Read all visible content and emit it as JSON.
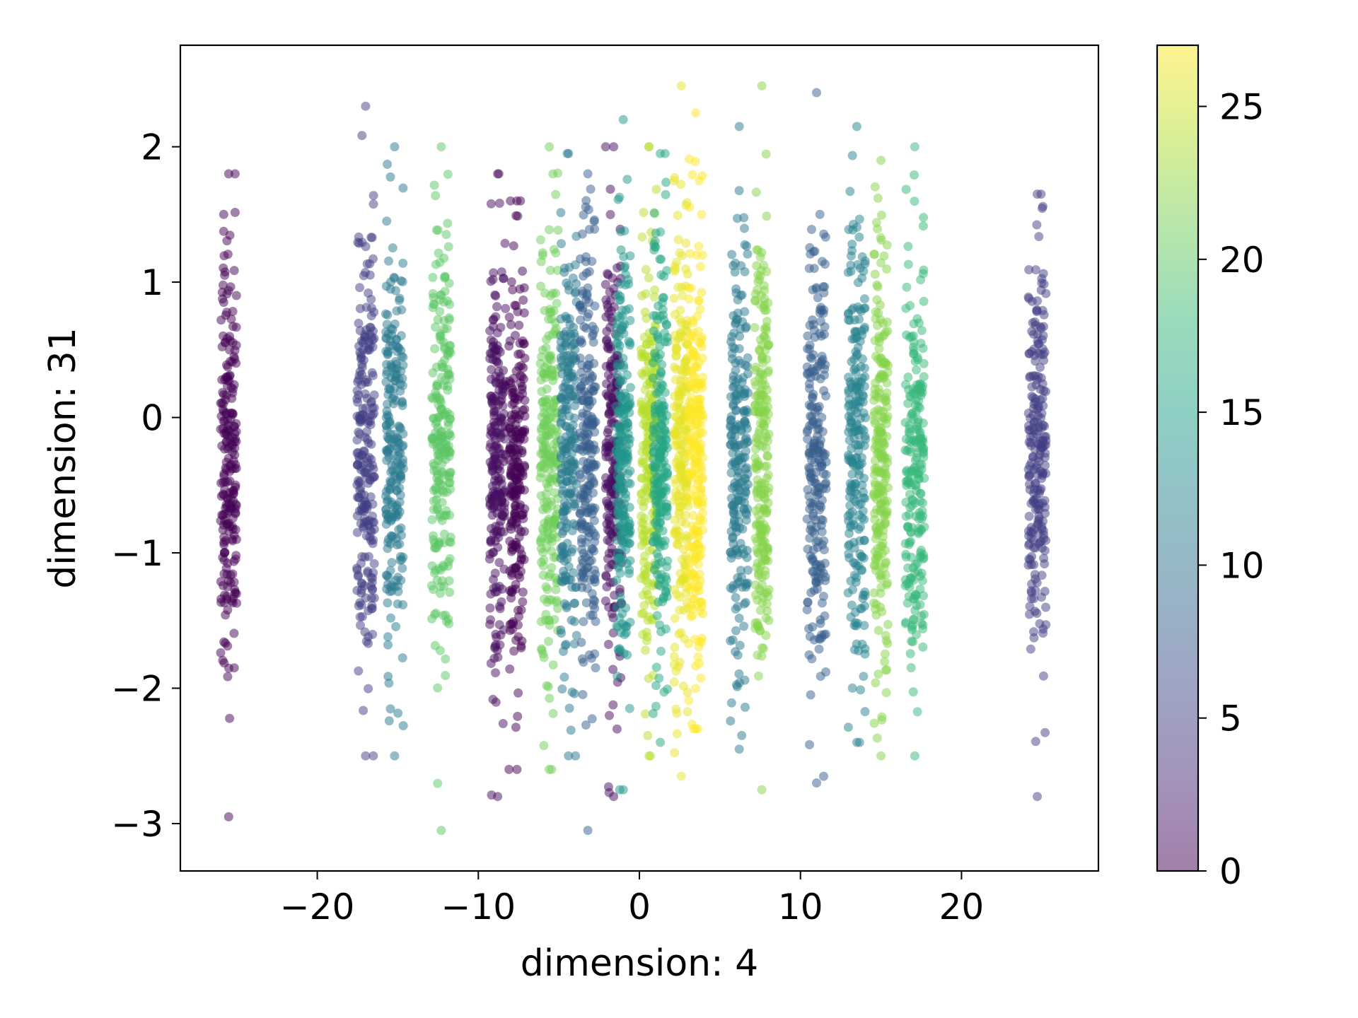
{
  "chart_data": {
    "type": "scatter",
    "title": "",
    "xlabel": "dimension: 4",
    "ylabel": "dimension: 31",
    "xlim": [
      -28.5,
      28.5
    ],
    "ylim": [
      -3.35,
      2.75
    ],
    "xticks": [
      -20,
      -10,
      0,
      10,
      20
    ],
    "yticks": [
      -3,
      -2,
      -1,
      0,
      1,
      2
    ],
    "xtick_labels": [
      "−20",
      "−10",
      "0",
      "10",
      "20"
    ],
    "ytick_labels": [
      "−3",
      "−2",
      "−1",
      "0",
      "1",
      "2"
    ],
    "grid": false,
    "legend": "none",
    "point_alpha": 0.5,
    "colorbar": {
      "colormap": "viridis",
      "range": [
        0,
        27
      ],
      "ticks": [
        0,
        5,
        10,
        15,
        20,
        25
      ],
      "tick_labels": [
        "0",
        "5",
        "10",
        "15",
        "20",
        "25"
      ],
      "alpha": 0.5
    },
    "colors": {
      "viridis_stops": [
        "#440154",
        "#482878",
        "#3e4989",
        "#31688e",
        "#26828e",
        "#1f9e89",
        "#35b779",
        "#6ece58",
        "#b5de2b",
        "#fde725"
      ]
    },
    "clusters": [
      {
        "x": -25.5,
        "spread_x": 0.5,
        "y_sd": 0.75,
        "y_min": -2.95,
        "y_max": 1.8,
        "value": 0
      },
      {
        "x": -17.0,
        "spread_x": 0.55,
        "y_sd": 0.8,
        "y_min": -2.5,
        "y_max": 2.3,
        "value": 5
      },
      {
        "x": -15.2,
        "spread_x": 0.55,
        "y_sd": 0.8,
        "y_min": -2.5,
        "y_max": 2.0,
        "value": 11
      },
      {
        "x": -12.3,
        "spread_x": 0.6,
        "y_sd": 0.8,
        "y_min": -3.05,
        "y_max": 2.0,
        "value": 20
      },
      {
        "x": -8.8,
        "spread_x": 0.5,
        "y_sd": 0.75,
        "y_min": -2.8,
        "y_max": 1.8,
        "value": 1
      },
      {
        "x": -7.6,
        "spread_x": 0.5,
        "y_sd": 0.75,
        "y_min": -2.6,
        "y_max": 1.6,
        "value": 0
      },
      {
        "x": -5.6,
        "spread_x": 0.55,
        "y_sd": 0.8,
        "y_min": -2.6,
        "y_max": 2.0,
        "value": 21
      },
      {
        "x": -4.4,
        "spread_x": 0.5,
        "y_sd": 0.8,
        "y_min": -2.5,
        "y_max": 1.95,
        "value": 11
      },
      {
        "x": -3.2,
        "spread_x": 0.5,
        "y_sd": 0.8,
        "y_min": -3.05,
        "y_max": 1.8,
        "value": 8
      },
      {
        "x": -1.6,
        "spread_x": 0.5,
        "y_sd": 0.8,
        "y_min": -2.8,
        "y_max": 2.0,
        "value": 1
      },
      {
        "x": -1.0,
        "spread_x": 0.45,
        "y_sd": 0.8,
        "y_min": -2.75,
        "y_max": 2.2,
        "value": 14
      },
      {
        "x": 0.6,
        "spread_x": 0.5,
        "y_sd": 0.8,
        "y_min": -2.5,
        "y_max": 2.0,
        "value": 24
      },
      {
        "x": 1.3,
        "spread_x": 0.45,
        "y_sd": 0.8,
        "y_min": -2.4,
        "y_max": 1.95,
        "value": 16
      },
      {
        "x": 2.6,
        "spread_x": 0.45,
        "y_sd": 0.8,
        "y_min": -2.65,
        "y_max": 2.45,
        "value": 26
      },
      {
        "x": 3.5,
        "spread_x": 0.45,
        "y_sd": 0.8,
        "y_min": -2.3,
        "y_max": 2.25,
        "value": 27
      },
      {
        "x": 6.2,
        "spread_x": 0.55,
        "y_sd": 0.8,
        "y_min": -2.45,
        "y_max": 2.15,
        "value": 11
      },
      {
        "x": 7.6,
        "spread_x": 0.45,
        "y_sd": 0.8,
        "y_min": -2.75,
        "y_max": 2.45,
        "value": 22
      },
      {
        "x": 11.0,
        "spread_x": 0.6,
        "y_sd": 0.8,
        "y_min": -2.7,
        "y_max": 2.4,
        "value": 8
      },
      {
        "x": 13.5,
        "spread_x": 0.55,
        "y_sd": 0.8,
        "y_min": -2.4,
        "y_max": 2.15,
        "value": 12
      },
      {
        "x": 15.0,
        "spread_x": 0.45,
        "y_sd": 0.8,
        "y_min": -2.5,
        "y_max": 1.9,
        "value": 22
      },
      {
        "x": 17.1,
        "spread_x": 0.6,
        "y_sd": 0.8,
        "y_min": -2.5,
        "y_max": 2.0,
        "value": 18
      },
      {
        "x": 24.7,
        "spread_x": 0.55,
        "y_sd": 0.75,
        "y_min": -2.8,
        "y_max": 1.65,
        "value": 5
      }
    ]
  }
}
